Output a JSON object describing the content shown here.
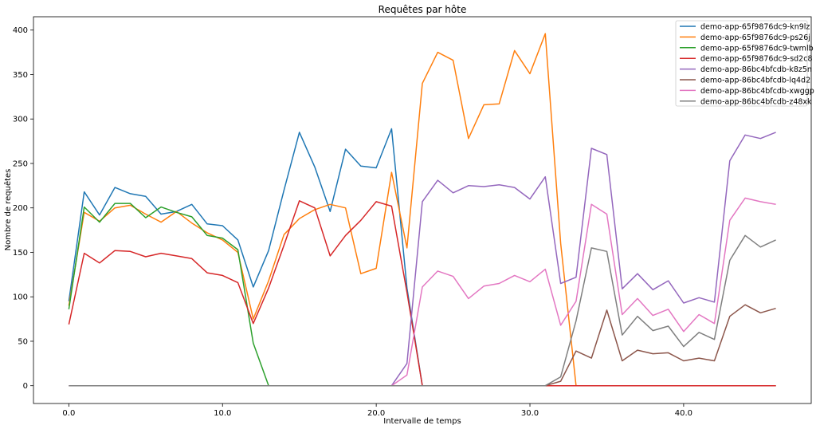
{
  "chart_data": {
    "type": "line",
    "title": "Requêtes par hôte",
    "xlabel": "Intervalle de temps",
    "ylabel": "Nombre de requêtes",
    "xlim": [
      -2.3,
      48.3
    ],
    "ylim": [
      -20,
      415
    ],
    "xticks": [
      0,
      10,
      20,
      30,
      40
    ],
    "xtick_labels": [
      "0.0",
      "10.0",
      "20.0",
      "30.0",
      "40.0"
    ],
    "yticks": [
      0,
      50,
      100,
      150,
      200,
      250,
      300,
      350,
      400
    ],
    "ytick_labels": [
      "0",
      "50",
      "100",
      "150",
      "200",
      "250",
      "300",
      "350",
      "400"
    ],
    "grid": false,
    "legend_position": "top-right",
    "x_start": 0,
    "series": [
      {
        "name": "demo-app-65f9876dc9-kn9lz",
        "color": "#1f77b4",
        "values": [
          95,
          218,
          192,
          223,
          216,
          213,
          193,
          196,
          204,
          182,
          180,
          164,
          111,
          152,
          220,
          285,
          246,
          196,
          266,
          247,
          245,
          289,
          110,
          0,
          0,
          0,
          0,
          0,
          0,
          0,
          0,
          0,
          0,
          0,
          0,
          0,
          0,
          0,
          0,
          0,
          0,
          0,
          0,
          0,
          0,
          0,
          0
        ]
      },
      {
        "name": "demo-app-65f9876dc9-ps26j",
        "color": "#ff7f0e",
        "values": [
          90,
          195,
          185,
          200,
          203,
          193,
          184,
          196,
          183,
          172,
          164,
          150,
          75,
          118,
          170,
          188,
          198,
          204,
          200,
          126,
          132,
          240,
          155,
          340,
          375,
          366,
          278,
          316,
          317,
          377,
          351,
          396,
          160,
          0,
          0,
          0,
          0,
          0,
          0,
          0,
          0,
          0,
          0,
          0,
          0,
          0,
          0
        ]
      },
      {
        "name": "demo-app-65f9876dc9-twmlb",
        "color": "#2ca02c",
        "values": [
          86,
          201,
          184,
          205,
          205,
          189,
          201,
          195,
          190,
          169,
          166,
          153,
          48,
          0,
          0,
          0,
          0,
          0,
          0,
          0,
          0,
          0,
          0,
          0,
          0,
          0,
          0,
          0,
          0,
          0,
          0,
          0,
          0,
          0,
          0,
          0,
          0,
          0,
          0,
          0,
          0,
          0,
          0,
          0,
          0,
          0,
          0
        ]
      },
      {
        "name": "demo-app-65f9876dc9-sd2c8",
        "color": "#d62728",
        "values": [
          69,
          149,
          138,
          152,
          151,
          145,
          149,
          146,
          143,
          127,
          124,
          116,
          70,
          110,
          158,
          208,
          200,
          146,
          169,
          186,
          207,
          202,
          105,
          0,
          0,
          0,
          0,
          0,
          0,
          0,
          0,
          0,
          0,
          0,
          0,
          0,
          0,
          0,
          0,
          0,
          0,
          0,
          0,
          0,
          0,
          0,
          0
        ]
      },
      {
        "name": "demo-app-86bc4bfcdb-k8z5n",
        "color": "#9467bd",
        "values": [
          0,
          0,
          0,
          0,
          0,
          0,
          0,
          0,
          0,
          0,
          0,
          0,
          0,
          0,
          0,
          0,
          0,
          0,
          0,
          0,
          0,
          0,
          25,
          207,
          231,
          217,
          225,
          224,
          226,
          223,
          210,
          235,
          115,
          122,
          267,
          260,
          109,
          126,
          108,
          118,
          93,
          99,
          94,
          253,
          282,
          278,
          285
        ]
      },
      {
        "name": "demo-app-86bc4bfcdb-lq4d2",
        "color": "#8c564b",
        "values": [
          0,
          0,
          0,
          0,
          0,
          0,
          0,
          0,
          0,
          0,
          0,
          0,
          0,
          0,
          0,
          0,
          0,
          0,
          0,
          0,
          0,
          0,
          0,
          0,
          0,
          0,
          0,
          0,
          0,
          0,
          0,
          0,
          5,
          39,
          31,
          85,
          28,
          40,
          36,
          37,
          28,
          31,
          28,
          78,
          91,
          82,
          87
        ]
      },
      {
        "name": "demo-app-86bc4bfcdb-xwggp",
        "color": "#e377c2",
        "values": [
          0,
          0,
          0,
          0,
          0,
          0,
          0,
          0,
          0,
          0,
          0,
          0,
          0,
          0,
          0,
          0,
          0,
          0,
          0,
          0,
          0,
          0,
          12,
          111,
          129,
          123,
          98,
          112,
          115,
          124,
          117,
          131,
          68,
          95,
          204,
          193,
          80,
          98,
          79,
          86,
          61,
          80,
          70,
          186,
          211,
          207,
          204
        ]
      },
      {
        "name": "demo-app-86bc4bfcdb-z48xk",
        "color": "#7f7f7f",
        "values": [
          0,
          0,
          0,
          0,
          0,
          0,
          0,
          0,
          0,
          0,
          0,
          0,
          0,
          0,
          0,
          0,
          0,
          0,
          0,
          0,
          0,
          0,
          0,
          0,
          0,
          0,
          0,
          0,
          0,
          0,
          0,
          0,
          10,
          73,
          155,
          151,
          57,
          78,
          62,
          67,
          44,
          60,
          52,
          141,
          169,
          156,
          164
        ]
      }
    ]
  }
}
